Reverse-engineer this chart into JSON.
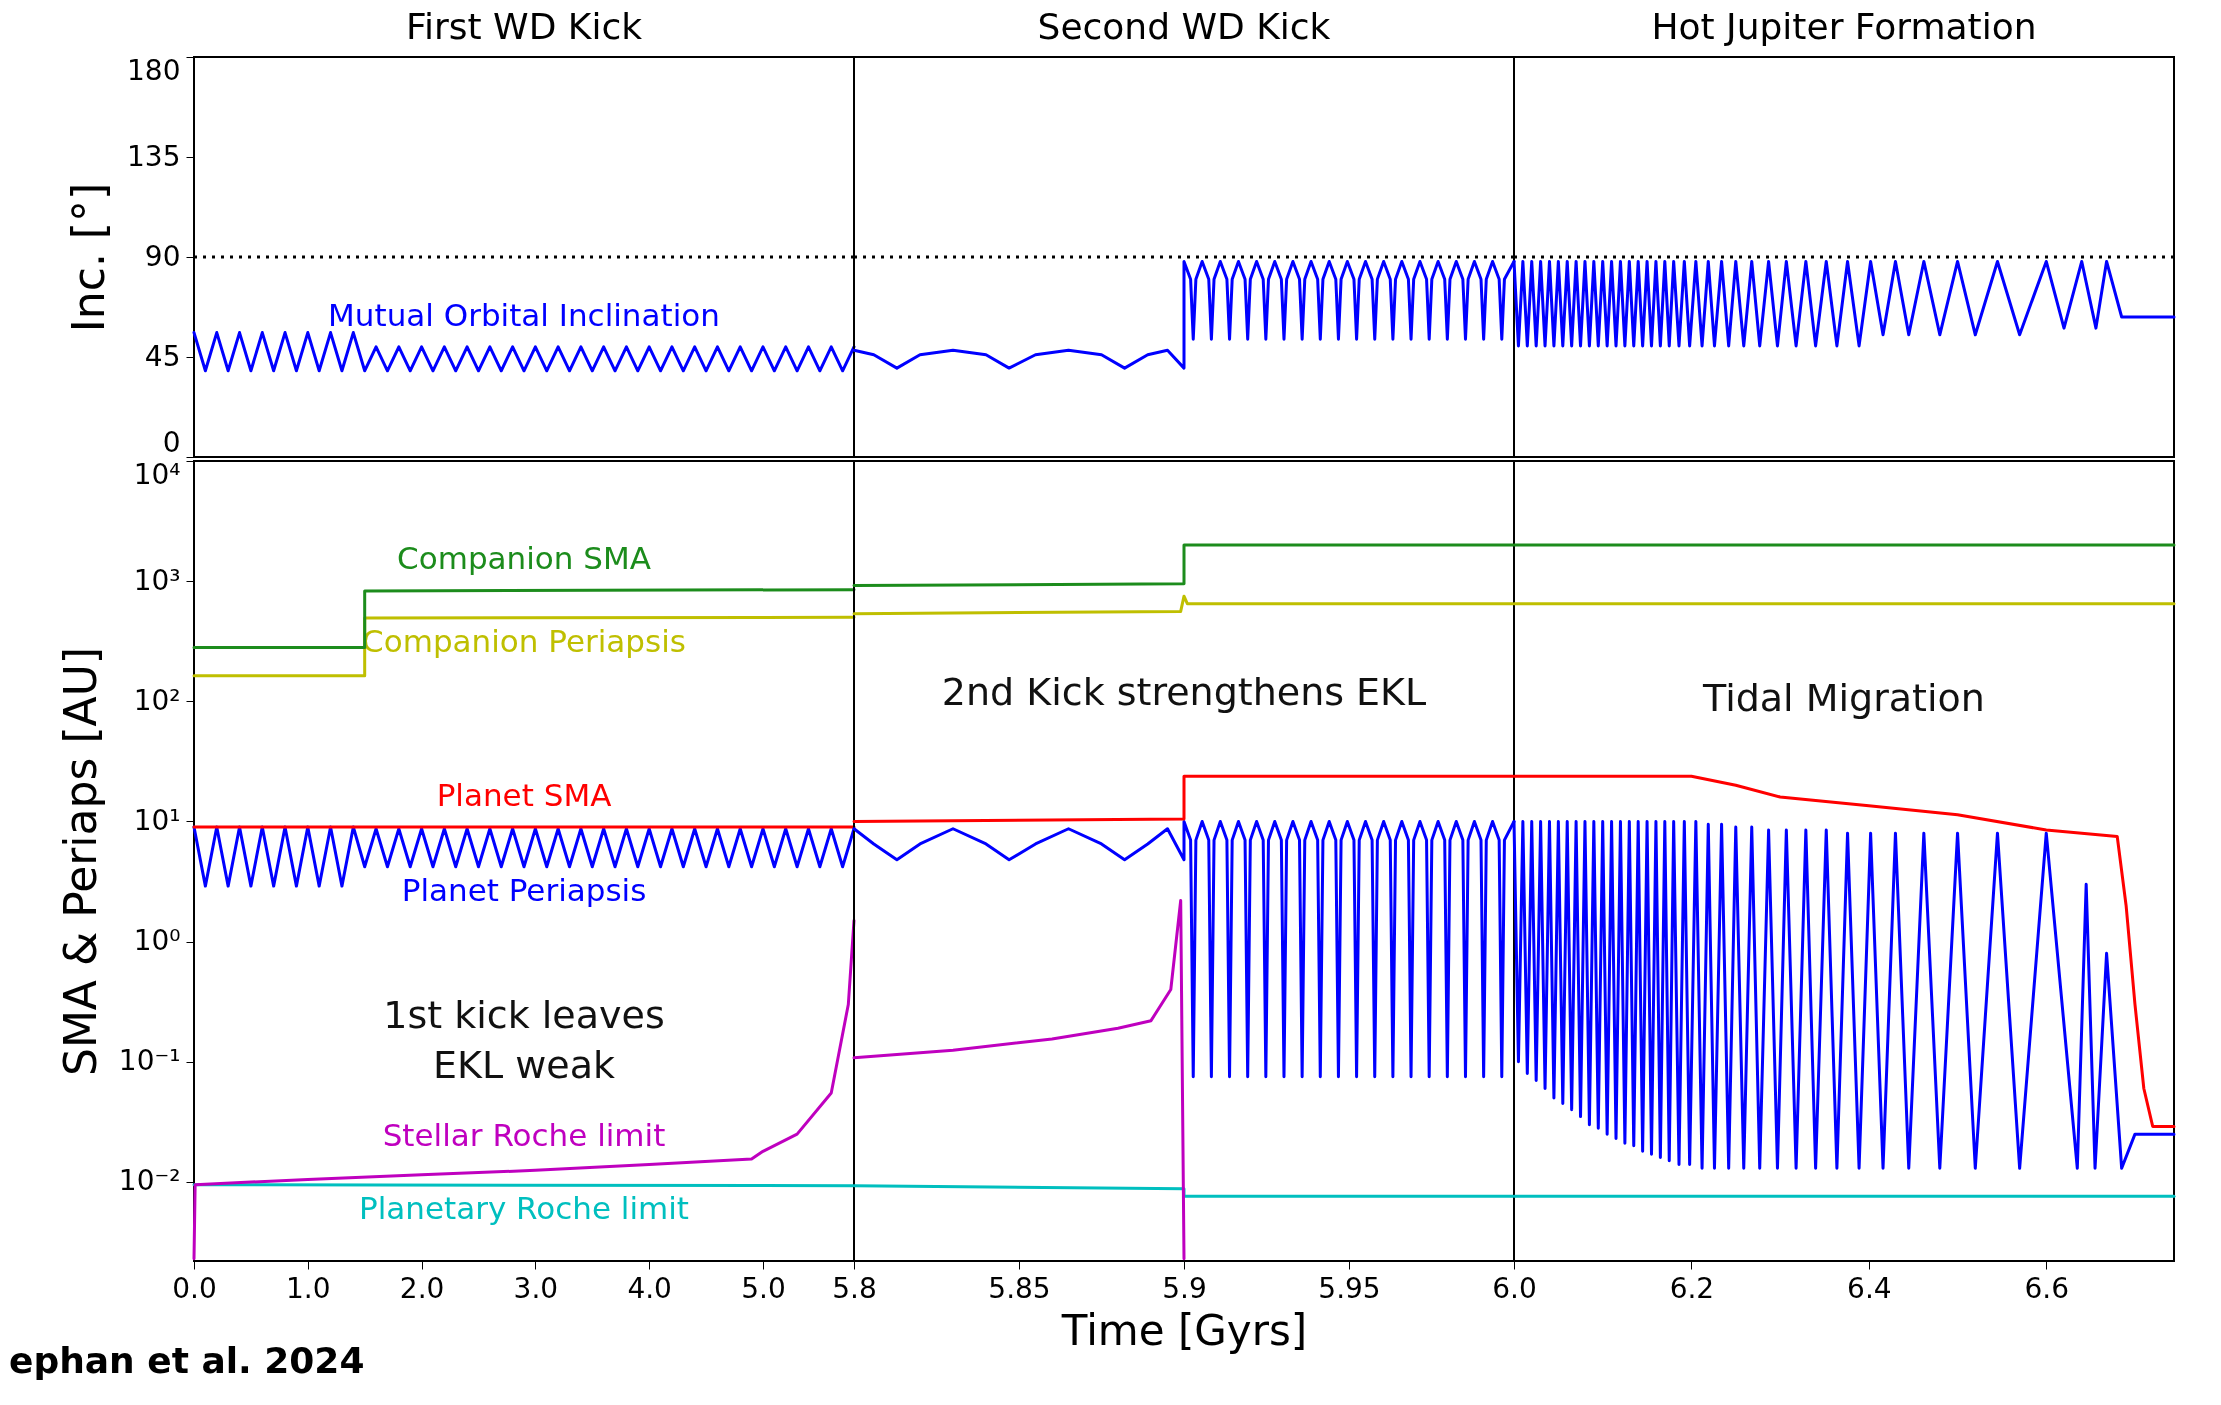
{
  "chart_data": [
    {
      "type": "line",
      "title": "First WD Kick",
      "ylabel": "Inc. [°]",
      "xlim": [
        0,
        5.8
      ],
      "xticks": [
        0,
        1,
        2,
        3,
        4,
        5,
        5.8
      ],
      "ylim": [
        0,
        180
      ],
      "yticks": [
        0,
        45,
        90,
        135,
        180
      ],
      "tick_labels": "y",
      "ref_lines": [
        {
          "axis": "y",
          "value": 90,
          "color": "#000000",
          "line_style": "dotted"
        }
      ],
      "series": [
        {
          "name": "Mutual Orbital Inclination",
          "color": "#0000ff",
          "x": [
            0,
            0.1,
            0.2,
            0.3,
            0.4,
            0.5,
            0.6,
            0.7,
            0.8,
            0.9,
            1.0,
            1.1,
            1.2,
            1.3,
            1.4,
            1.5,
            1.6,
            1.7,
            1.8,
            1.9,
            2.0,
            2.1,
            2.2,
            2.3,
            2.4,
            2.5,
            2.6,
            2.7,
            2.8,
            2.9,
            3.0,
            3.1,
            3.2,
            3.3,
            3.4,
            3.5,
            3.6,
            3.7,
            3.8,
            3.9,
            4.0,
            4.1,
            4.2,
            4.3,
            4.4,
            4.5,
            4.6,
            4.7,
            4.8,
            4.9,
            5.0,
            5.1,
            5.2,
            5.3,
            5.4,
            5.5,
            5.6,
            5.7,
            5.8
          ],
          "values": [
            56,
            38.8,
            56,
            38.8,
            56,
            38.8,
            56,
            38.8,
            56,
            38.8,
            56,
            38.8,
            56,
            38.8,
            56,
            38.8,
            49.6,
            38.8,
            49.6,
            38.8,
            49.6,
            38.8,
            49.6,
            38.8,
            49.6,
            38.8,
            49.6,
            38.8,
            49.6,
            38.8,
            49.6,
            38.8,
            49.6,
            38.8,
            49.6,
            38.8,
            49.6,
            38.8,
            49.6,
            38.8,
            49.6,
            38.8,
            49.6,
            38.8,
            49.6,
            38.8,
            49.6,
            38.8,
            49.6,
            38.8,
            49.6,
            38.8,
            49.6,
            38.8,
            49.6,
            38.8,
            49.6,
            38.8,
            49.6
          ]
        }
      ]
    },
    {
      "type": "line",
      "title": "Second WD Kick",
      "xlim": [
        5.8,
        6.0
      ],
      "xticks": [
        5.85,
        5.9,
        5.95
      ],
      "ylim": [
        0,
        180
      ],
      "yticks": [
        0,
        45,
        90,
        135,
        180
      ],
      "tick_labels": false,
      "ref_lines": [
        {
          "axis": "y",
          "value": 90,
          "color": "#000000",
          "line_style": "dotted"
        }
      ],
      "series": [
        {
          "color": "#0000ff",
          "x": [
            5.8,
            5.806,
            5.813,
            5.82,
            5.83,
            5.84,
            5.847,
            5.855,
            5.865,
            5.875,
            5.882,
            5.889,
            5.895,
            5.9,
            5.9,
            5.902,
            5.9028,
            5.9036,
            5.9055,
            5.9075,
            5.9083,
            5.9091,
            5.911,
            5.913,
            5.9138,
            5.9146,
            5.9165,
            5.9185,
            5.9193,
            5.9201,
            5.922,
            5.924,
            5.9248,
            5.9256,
            5.9275,
            5.9295,
            5.9303,
            5.9311,
            5.933,
            5.935,
            5.9358,
            5.9366,
            5.9385,
            5.9405,
            5.9413,
            5.9421,
            5.944,
            5.946,
            5.9468,
            5.9476,
            5.9495,
            5.9515,
            5.9523,
            5.9531,
            5.955,
            5.957,
            5.9578,
            5.9586,
            5.9605,
            5.9625,
            5.9633,
            5.9641,
            5.966,
            5.968,
            5.9688,
            5.9696,
            5.9715,
            5.9735,
            5.9743,
            5.9751,
            5.977,
            5.979,
            5.9798,
            5.9806,
            5.9825,
            5.9845,
            5.9853,
            5.9861,
            5.988,
            5.99,
            5.9908,
            5.9916,
            5.9935,
            5.9955,
            5.9963,
            5.9971,
            6.0
          ],
          "values": [
            48,
            46,
            40,
            46,
            48,
            46,
            40,
            46,
            48,
            46,
            40,
            46,
            48,
            40,
            88,
            80,
            53,
            80,
            88,
            80,
            53,
            80,
            88,
            80,
            53,
            80,
            88,
            80,
            53,
            80,
            88,
            80,
            53,
            80,
            88,
            80,
            53,
            80,
            88,
            80,
            53,
            80,
            88,
            80,
            53,
            80,
            88,
            80,
            53,
            80,
            88,
            80,
            53,
            80,
            88,
            80,
            53,
            80,
            88,
            80,
            53,
            80,
            88,
            80,
            53,
            80,
            88,
            80,
            53,
            80,
            88,
            80,
            53,
            80,
            88,
            80,
            53,
            80,
            88,
            80,
            53,
            80,
            88,
            80,
            53,
            80,
            88
          ]
        }
      ]
    },
    {
      "type": "line",
      "title": "Hot Jupiter Formation",
      "xlim": [
        6.0,
        6.744
      ],
      "xticks": [
        6,
        6.2,
        6.4,
        6.6
      ],
      "ylim": [
        0,
        180
      ],
      "yticks": [
        0,
        45,
        90,
        135,
        180
      ],
      "tick_labels": false,
      "ref_lines": [
        {
          "axis": "y",
          "value": 90,
          "color": "#000000",
          "line_style": "dotted"
        }
      ],
      "series": [
        {
          "color": "#0000ff",
          "x": [
            6.0,
            6.005,
            6.01,
            6.015,
            6.02,
            6.025,
            6.03,
            6.035,
            6.04,
            6.045,
            6.05,
            6.055,
            6.06,
            6.065,
            6.07,
            6.075,
            6.08,
            6.085,
            6.09,
            6.095,
            6.1,
            6.105,
            6.11,
            6.115,
            6.12,
            6.125,
            6.13,
            6.135,
            6.14,
            6.145,
            6.15,
            6.155,
            6.16,
            6.165,
            6.17,
            6.175,
            6.18,
            6.186,
            6.192,
            6.198,
            6.205,
            6.212,
            6.219,
            6.226,
            6.234,
            6.242,
            6.25,
            6.259,
            6.268,
            6.277,
            6.287,
            6.297,
            6.307,
            6.318,
            6.329,
            6.34,
            6.352,
            6.364,
            6.376,
            6.389,
            6.402,
            6.416,
            6.43,
            6.445,
            6.462,
            6.48,
            6.5,
            6.52,
            6.545,
            6.57,
            6.6,
            6.62,
            6.64,
            6.656,
            6.668,
            6.685,
            6.7,
            6.744
          ],
          "values": [
            88,
            50,
            88,
            50,
            88,
            50,
            88,
            50,
            88,
            50,
            88,
            50,
            88,
            50,
            88,
            50,
            88,
            50,
            88,
            50,
            88,
            50,
            88,
            50,
            88,
            50,
            88,
            50,
            88,
            50,
            88,
            50,
            88,
            50,
            88,
            50,
            88,
            50,
            88,
            50,
            88,
            50,
            88,
            50,
            88,
            50,
            88,
            50,
            88,
            50,
            88,
            50,
            88,
            50,
            88,
            50,
            88,
            50,
            88,
            50,
            88,
            55,
            88,
            55,
            88,
            55,
            88,
            55,
            88,
            55,
            88,
            58,
            88,
            58,
            88,
            63,
            63,
            63
          ]
        }
      ]
    },
    {
      "type": "line",
      "ylabel": "SMA & Periaps [AU]",
      "log": true,
      "xlim": [
        0,
        5.8
      ],
      "xticks": [
        {
          "value": 0,
          "label": "0.0"
        },
        {
          "value": 1,
          "label": "1.0"
        },
        {
          "value": 2,
          "label": "2.0"
        },
        {
          "value": 3,
          "label": "3.0"
        },
        {
          "value": 4,
          "label": "4.0"
        },
        {
          "value": 5,
          "label": "5.0"
        },
        5.8
      ],
      "ylim": [
        0.0022,
        10000
      ],
      "yticks": [
        {
          "value": 0.01,
          "label": "10⁻²"
        },
        {
          "value": 0.1,
          "label": "10⁻¹"
        },
        {
          "value": 1,
          "label": "10⁰"
        },
        {
          "value": 10,
          "label": "10¹"
        },
        {
          "value": 100,
          "label": "10²"
        },
        {
          "value": 1000,
          "label": "10³"
        },
        {
          "value": 10000,
          "label": "10⁴"
        }
      ],
      "annotations": [
        "1st kick leaves\nEKL weak",
        "ephan et al. 2024"
      ],
      "series": [
        {
          "name": "Companion SMA",
          "color": "#1c8c1c",
          "x": [
            0,
            1.5,
            1.5,
            5.8
          ],
          "values": [
            280,
            280,
            830,
            850
          ]
        },
        {
          "name": "Companion Periapsis",
          "color": "#bfbf00",
          "x": [
            0,
            1.5,
            1.5,
            5.8
          ],
          "values": [
            163,
            163,
            494,
            500
          ]
        },
        {
          "name": "Planet SMA",
          "color": "#ff0000",
          "x": [
            0,
            5.8
          ],
          "values": [
            9,
            9
          ]
        },
        {
          "name": "Planet Periapsis",
          "color": "#0000ff",
          "x": [
            0,
            0.1,
            0.2,
            0.3,
            0.4,
            0.5,
            0.6,
            0.7,
            0.8,
            0.9,
            1.0,
            1.1,
            1.2,
            1.3,
            1.4,
            1.5,
            1.6,
            1.7,
            1.8,
            1.9,
            2.0,
            2.1,
            2.2,
            2.3,
            2.4,
            2.5,
            2.6,
            2.7,
            2.8,
            2.9,
            3.0,
            3.1,
            3.2,
            3.3,
            3.4,
            3.5,
            3.6,
            3.7,
            3.8,
            3.9,
            4.0,
            4.1,
            4.2,
            4.3,
            4.4,
            4.5,
            4.6,
            4.7,
            4.8,
            4.9,
            5.0,
            5.1,
            5.2,
            5.3,
            5.4,
            5.5,
            5.6,
            5.7,
            5.8
          ],
          "values": [
            9,
            2.9,
            9,
            2.9,
            9,
            2.9,
            9,
            2.9,
            9,
            2.9,
            9,
            2.9,
            9,
            2.9,
            9,
            4.2,
            8.7,
            4.2,
            8.7,
            4.2,
            8.7,
            4.2,
            8.7,
            4.2,
            8.7,
            4.2,
            8.7,
            4.2,
            8.7,
            4.2,
            8.7,
            4.2,
            8.7,
            4.2,
            8.7,
            4.2,
            8.7,
            4.2,
            8.7,
            4.2,
            8.7,
            4.2,
            8.7,
            4.2,
            8.7,
            4.2,
            8.7,
            4.2,
            8.7,
            4.2,
            8.7,
            4.2,
            8.7,
            4.2,
            8.7,
            4.2,
            8.7,
            4.2,
            8.7
          ]
        },
        {
          "name": "Stellar Roche limit",
          "color": "#bf00bf",
          "x": [
            0,
            0.01,
            1,
            2,
            3,
            4,
            4.9,
            5.0,
            5.3,
            5.6,
            5.75,
            5.8
          ],
          "values": [
            0.0023,
            0.0095,
            0.0105,
            0.0115,
            0.0125,
            0.014,
            0.0155,
            0.018,
            0.025,
            0.055,
            0.3,
            1.5
          ]
        },
        {
          "name": "Planetary Roche limit",
          "color": "#00bfbf",
          "x": [
            0,
            5.8
          ],
          "values": [
            0.0095,
            0.0093
          ]
        }
      ]
    },
    {
      "type": "line",
      "xlabel": "Time [Gyrs]",
      "log": true,
      "xlim": [
        5.8,
        6.0
      ],
      "xticks": [
        5.85,
        5.9,
        5.95
      ],
      "ylim": [
        0.0022,
        10000
      ],
      "yticks": [
        0.01,
        0.1,
        1,
        10,
        100,
        1000,
        10000
      ],
      "tick_labels": "x",
      "annotations": [
        "2nd Kick strengthens EKL"
      ],
      "series": [
        {
          "color": "#1c8c1c",
          "x": [
            5.8,
            5.9,
            5.9,
            6.0
          ],
          "values": [
            920,
            950,
            2000,
            2000
          ]
        },
        {
          "color": "#bfbf00",
          "x": [
            5.8,
            5.899,
            5.9,
            5.901,
            6.0
          ],
          "values": [
            535,
            560,
            750,
            650,
            650
          ]
        },
        {
          "color": "#ff0000",
          "x": [
            5.8,
            5.9,
            5.9,
            6.0
          ],
          "values": [
            10,
            10.5,
            23.8,
            23.8
          ]
        },
        {
          "color": "#0000ff",
          "x": [
            5.8,
            5.806,
            5.813,
            5.82,
            5.83,
            5.84,
            5.847,
            5.855,
            5.865,
            5.875,
            5.882,
            5.889,
            5.895,
            5.9,
            5.9,
            5.902,
            5.9028,
            5.9036,
            5.9055,
            5.9075,
            5.9083,
            5.9091,
            5.911,
            5.913,
            5.9138,
            5.9146,
            5.9165,
            5.9185,
            5.9193,
            5.9201,
            5.922,
            5.924,
            5.9248,
            5.9256,
            5.9275,
            5.9295,
            5.9303,
            5.9311,
            5.933,
            5.935,
            5.9358,
            5.9366,
            5.9385,
            5.9405,
            5.9413,
            5.9421,
            5.944,
            5.946,
            5.9468,
            5.9476,
            5.9495,
            5.9515,
            5.9523,
            5.9531,
            5.955,
            5.957,
            5.9578,
            5.9586,
            5.9605,
            5.9625,
            5.9633,
            5.9641,
            5.966,
            5.968,
            5.9688,
            5.9696,
            5.9715,
            5.9735,
            5.9743,
            5.9751,
            5.977,
            5.979,
            5.9798,
            5.9806,
            5.9825,
            5.9845,
            5.9853,
            5.9861,
            5.988,
            5.99,
            5.9908,
            5.9916,
            5.9935,
            5.9955,
            5.9963,
            5.9971,
            6.0
          ],
          "values": [
            8.7,
            6.5,
            4.8,
            6.5,
            8.7,
            6.5,
            4.8,
            6.5,
            8.7,
            6.5,
            4.8,
            6.5,
            8.7,
            4.8,
            10,
            7,
            0.075,
            7,
            10,
            7,
            0.075,
            7,
            10,
            7,
            0.075,
            7,
            10,
            7,
            0.075,
            7,
            10,
            7,
            0.075,
            7,
            10,
            7,
            0.075,
            7,
            10,
            7,
            0.075,
            7,
            10,
            7,
            0.075,
            7,
            10,
            7,
            0.075,
            7,
            10,
            7,
            0.075,
            7,
            10,
            7,
            0.075,
            7,
            10,
            7,
            0.075,
            7,
            10,
            7,
            0.075,
            7,
            10,
            7,
            0.075,
            7,
            10,
            7,
            0.075,
            7,
            10,
            7,
            0.075,
            7,
            10,
            7,
            0.075,
            7,
            10,
            7,
            0.075,
            7,
            10
          ]
        },
        {
          "color": "#bf00bf",
          "x": [
            5.8,
            5.83,
            5.86,
            5.88,
            5.89,
            5.896,
            5.899,
            5.9
          ],
          "values": [
            0.108,
            0.125,
            0.155,
            0.19,
            0.22,
            0.4,
            2.2,
            0.0023
          ]
        },
        {
          "color": "#00bfbf",
          "x": [
            5.8,
            5.9,
            5.9,
            6.0
          ],
          "values": [
            0.0093,
            0.0088,
            0.0076,
            0.0076
          ]
        }
      ]
    },
    {
      "type": "line",
      "log": true,
      "xlim": [
        6.0,
        6.744
      ],
      "xticks": [
        {
          "value": 6,
          "label": "6.0"
        },
        6.2,
        6.4,
        6.6
      ],
      "ylim": [
        0.0022,
        10000
      ],
      "yticks": [
        0.01,
        0.1,
        1,
        10,
        100,
        1000,
        10000
      ],
      "tick_labels": "x",
      "annotations": [
        "Tidal Migration"
      ],
      "series": [
        {
          "color": "#1c8c1c",
          "x": [
            6.0,
            6.744
          ],
          "values": [
            2000,
            2000
          ]
        },
        {
          "color": "#bfbf00",
          "x": [
            6.0,
            6.744
          ],
          "values": [
            650,
            650
          ]
        },
        {
          "color": "#ff0000",
          "x": [
            6.0,
            6.2,
            6.25,
            6.3,
            6.4,
            6.5,
            6.6,
            6.68,
            6.69,
            6.7,
            6.71,
            6.72,
            6.744
          ],
          "values": [
            23.8,
            23.8,
            20,
            16,
            13.5,
            11.4,
            8.5,
            7.5,
            2,
            0.3,
            0.06,
            0.029,
            0.029
          ]
        },
        {
          "color": "#0000ff",
          "x": [
            6.0,
            6.005,
            6.01,
            6.015,
            6.02,
            6.025,
            6.03,
            6.035,
            6.04,
            6.045,
            6.05,
            6.055,
            6.06,
            6.065,
            6.07,
            6.075,
            6.08,
            6.085,
            6.09,
            6.095,
            6.1,
            6.105,
            6.11,
            6.115,
            6.12,
            6.125,
            6.13,
            6.135,
            6.14,
            6.145,
            6.15,
            6.155,
            6.16,
            6.165,
            6.17,
            6.175,
            6.18,
            6.186,
            6.192,
            6.198,
            6.205,
            6.212,
            6.219,
            6.226,
            6.234,
            6.242,
            6.25,
            6.259,
            6.268,
            6.277,
            6.287,
            6.297,
            6.307,
            6.318,
            6.329,
            6.34,
            6.352,
            6.364,
            6.376,
            6.389,
            6.402,
            6.416,
            6.43,
            6.445,
            6.462,
            6.48,
            6.5,
            6.52,
            6.545,
            6.57,
            6.6,
            6.635,
            6.645,
            6.655,
            6.668,
            6.685,
            6.7,
            6.744
          ],
          "values": [
            10,
            0.1,
            10,
            0.08,
            10,
            0.07,
            10,
            0.06,
            10,
            0.05,
            10,
            0.045,
            10,
            0.04,
            10,
            0.035,
            10,
            0.03,
            10,
            0.028,
            10,
            0.025,
            10,
            0.023,
            10,
            0.021,
            10,
            0.02,
            10,
            0.018,
            10,
            0.017,
            10,
            0.016,
            10,
            0.015,
            10,
            0.014,
            10,
            0.014,
            10,
            0.013,
            9.5,
            0.013,
            9.5,
            0.013,
            9,
            0.013,
            9,
            0.013,
            8.5,
            0.013,
            8.5,
            0.013,
            8.5,
            0.013,
            8.5,
            0.013,
            8,
            0.013,
            8,
            0.013,
            8,
            0.013,
            8,
            0.013,
            8,
            0.013,
            8,
            0.013,
            8,
            0.013,
            3,
            0.013,
            0.8,
            0.013,
            0.025,
            0.025
          ]
        },
        {
          "color": "#00bfbf",
          "x": [
            6.0,
            6.744
          ],
          "values": [
            0.0076,
            0.0076
          ]
        }
      ]
    }
  ]
}
